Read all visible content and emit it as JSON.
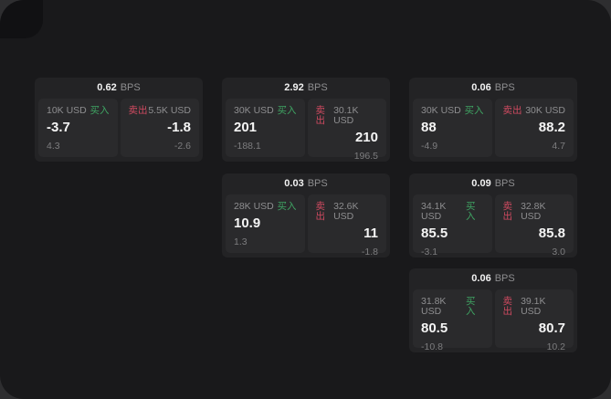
{
  "labels": {
    "bps_suffix": "BPS",
    "buy": "买入",
    "sell": "卖出"
  },
  "colors": {
    "buy_green": "#3fa463",
    "sell_red": "#cf4a60",
    "surface": "#19191b",
    "card": "#232325",
    "panel": "#2a2a2c"
  },
  "cards": [
    {
      "row": 0,
      "col": 0,
      "bps": "0.62",
      "buy": {
        "amount": "10K USD",
        "price": "-3.7",
        "delta": "4.3"
      },
      "sell": {
        "amount": "5.5K USD",
        "price": "-1.8",
        "delta": "-2.6"
      }
    },
    {
      "row": 0,
      "col": 1,
      "bps": "2.92",
      "buy": {
        "amount": "30K USD",
        "price": "201",
        "delta": "-188.1"
      },
      "sell": {
        "amount": "30.1K USD",
        "price": "210",
        "delta": "196.5"
      }
    },
    {
      "row": 0,
      "col": 2,
      "bps": "0.06",
      "buy": {
        "amount": "30K USD",
        "price": "88",
        "delta": "-4.9"
      },
      "sell": {
        "amount": "30K USD",
        "price": "88.2",
        "delta": "4.7"
      }
    },
    {
      "row": 1,
      "col": 1,
      "bps": "0.03",
      "buy": {
        "amount": "28K USD",
        "price": "10.9",
        "delta": "1.3"
      },
      "sell": {
        "amount": "32.6K USD",
        "price": "11",
        "delta": "-1.8"
      }
    },
    {
      "row": 1,
      "col": 2,
      "bps": "0.09",
      "buy": {
        "amount": "34.1K USD",
        "price": "85.5",
        "delta": "-3.1"
      },
      "sell": {
        "amount": "32.8K USD",
        "price": "85.8",
        "delta": "3.0"
      }
    },
    {
      "row": 2,
      "col": 2,
      "bps": "0.06",
      "buy": {
        "amount": "31.8K USD",
        "price": "80.5",
        "delta": "-10.8"
      },
      "sell": {
        "amount": "39.1K USD",
        "price": "80.7",
        "delta": "10.2"
      }
    }
  ]
}
